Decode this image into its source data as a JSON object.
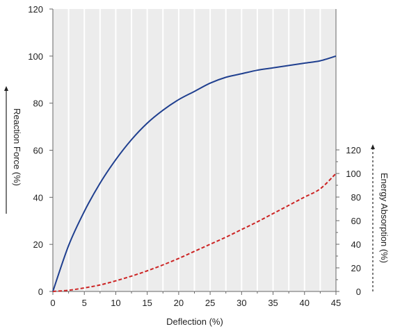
{
  "chart_data": {
    "type": "line",
    "xlabel": "Deflection (%)",
    "ylabel_left": "Reaction Force (%)",
    "ylabel_right": "Energy Absorption (%)",
    "xlim": [
      0,
      45
    ],
    "xticks": [
      0,
      5,
      10,
      15,
      20,
      25,
      30,
      35,
      40,
      45
    ],
    "ylim_left": [
      0,
      120
    ],
    "yticks_left": [
      0,
      20,
      40,
      60,
      80,
      100,
      120
    ],
    "ylim_right": [
      0,
      120
    ],
    "yticks_right": [
      0,
      20,
      40,
      60,
      80,
      100,
      120
    ],
    "grid": "vertical",
    "background": "#ececec",
    "series": [
      {
        "axis": "left",
        "style": "solid",
        "color": "#1f3f8f",
        "x": [
          0,
          2.5,
          5,
          7.5,
          10,
          12.5,
          15,
          17.5,
          20,
          22.5,
          25,
          27.5,
          30,
          32.5,
          35,
          37.5,
          40,
          42.5,
          45
        ],
        "y": [
          0,
          19.5,
          34,
          46,
          56,
          64.5,
          71.5,
          77,
          81.5,
          85,
          88.5,
          91,
          92.5,
          94,
          95,
          96,
          97,
          98,
          100
        ]
      },
      {
        "axis": "right",
        "style": "dashed",
        "color": "#cc2222",
        "x": [
          0,
          2.5,
          5,
          7.5,
          10,
          12.5,
          15,
          17.5,
          20,
          22.5,
          25,
          27.5,
          30,
          32.5,
          35,
          37.5,
          40,
          42.5,
          45
        ],
        "y": [
          0,
          1,
          3,
          5.5,
          9,
          13,
          17.5,
          22.5,
          28,
          34,
          40,
          46,
          52.5,
          59,
          66,
          73,
          80,
          87,
          100
        ]
      }
    ]
  }
}
